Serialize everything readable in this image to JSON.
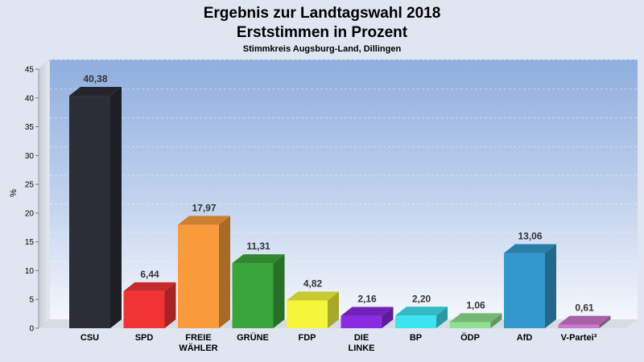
{
  "chart_data": {
    "type": "bar",
    "title": "Ergebnis zur Landtagswahl 2018",
    "subtitle_line": "Erststimmen in Prozent",
    "caption": "Stimmkreis Augsburg-Land, Dillingen",
    "ylabel": "%",
    "ylim": [
      0,
      45
    ],
    "yticks": [
      "0",
      "5",
      "10",
      "15",
      "20",
      "25",
      "30",
      "35",
      "40",
      "45"
    ],
    "grid": true,
    "categories": [
      [
        "CSU"
      ],
      [
        "SPD"
      ],
      [
        "FREIE",
        "WÄHLER"
      ],
      [
        "GRÜNE"
      ],
      [
        "FDP"
      ],
      [
        "DIE",
        "LINKE"
      ],
      [
        "BP"
      ],
      [
        "ÖDP"
      ],
      [
        "AfD"
      ],
      [
        "V-Partei³"
      ]
    ],
    "values": [
      40.38,
      6.44,
      17.97,
      11.31,
      4.82,
      2.16,
      2.2,
      1.06,
      13.06,
      0.61
    ],
    "value_labels": [
      "40,38",
      "6,44",
      "17,97",
      "11,31",
      "4,82",
      "2,16",
      "2,20",
      "1,06",
      "13,06",
      "0,61"
    ],
    "colors": [
      "#2b2e36",
      "#f23333",
      "#f99b3a",
      "#3aa53a",
      "#f5f53c",
      "#8a2be2",
      "#3de3f0",
      "#8fe08f",
      "#3399cc",
      "#cc77cc"
    ]
  }
}
